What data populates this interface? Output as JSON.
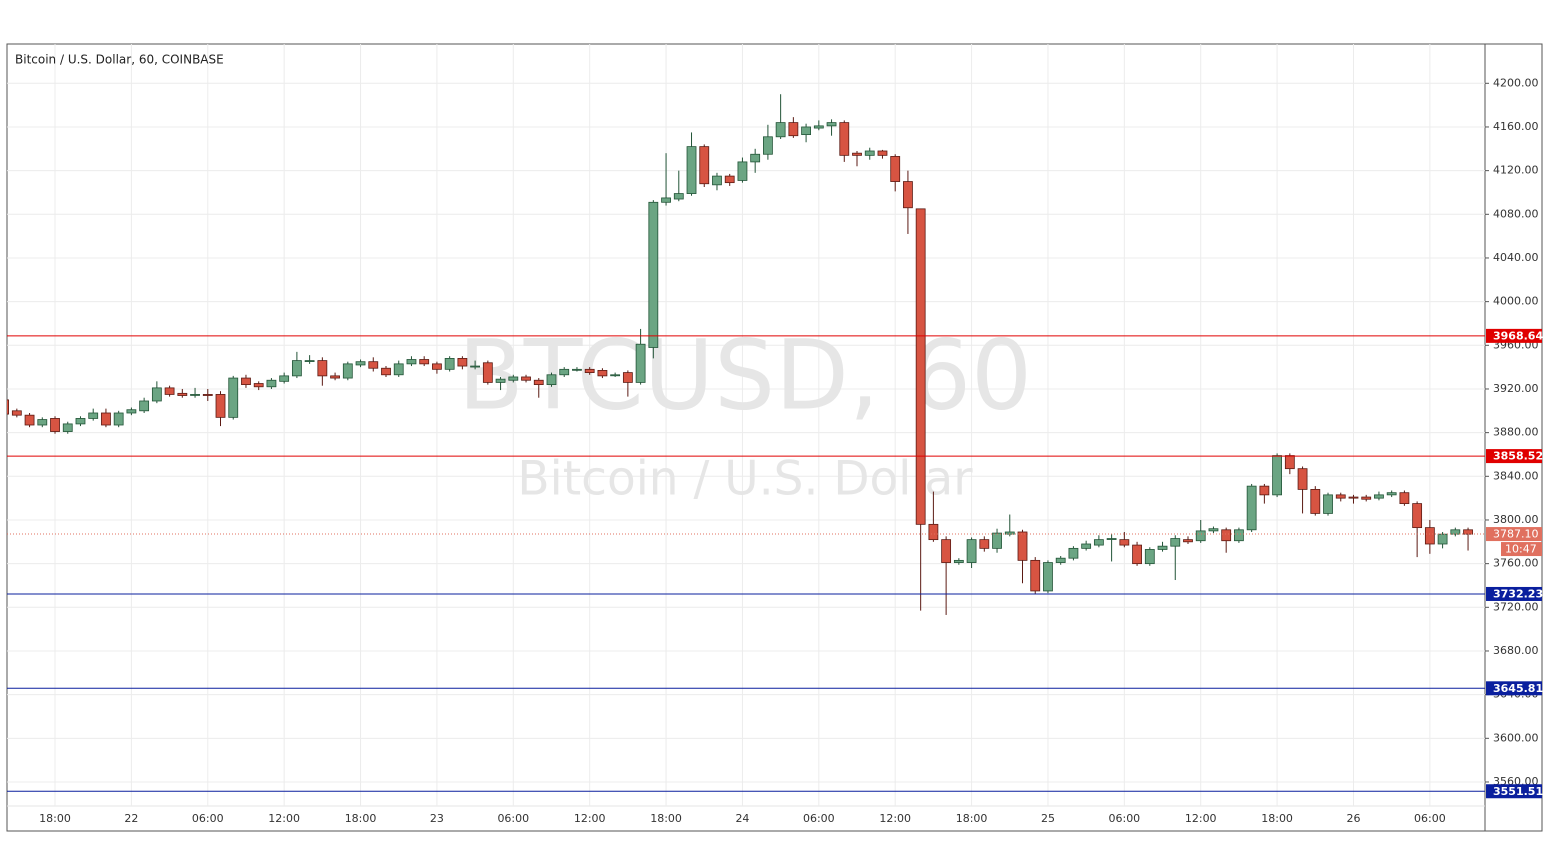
{
  "chart_data": {
    "type": "candlestick",
    "title": "Bitcoin / U.S. Dollar, 60, COINBASE",
    "watermark": "BTCUSD, 60",
    "watermark_subtitle": "Bitcoin / U.S. Dollar",
    "categories": [
      null,
      null,
      null,
      null,
      "18:00",
      null,
      null,
      null,
      null,
      null,
      "22",
      null,
      null,
      null,
      null,
      null,
      "06:00",
      null,
      null,
      null,
      null,
      null,
      "12:00",
      null,
      null,
      null,
      null,
      null,
      "18:00",
      null,
      null,
      null,
      null,
      null,
      "23",
      null,
      null,
      null,
      null,
      null,
      "06:00",
      null,
      null,
      null,
      null,
      null,
      "12:00",
      null,
      null,
      null,
      null,
      null,
      "18:00",
      null,
      null,
      null,
      null,
      null,
      "24",
      null,
      null,
      null,
      null,
      null,
      "06:00",
      null,
      null,
      null,
      null,
      null,
      "12:00",
      null,
      null,
      null,
      null,
      null,
      "18:00",
      null,
      null,
      null,
      null,
      null,
      "25",
      null,
      null,
      null,
      null,
      null,
      "06:00",
      null,
      null,
      null,
      null,
      null,
      "12:00",
      null,
      null,
      null,
      null,
      null,
      "18:00",
      null,
      null,
      null,
      null,
      null,
      "26",
      null,
      null,
      null,
      null,
      null,
      "06:00",
      null,
      null,
      null
    ],
    "open": [
      3910,
      3900,
      3896,
      3887,
      3893,
      3881,
      3888,
      3893,
      3898,
      3887,
      3898,
      3900,
      3909,
      3921,
      3916,
      3915,
      3915,
      3915,
      3894,
      3930,
      3925,
      3922,
      3927,
      3932,
      3946,
      3946,
      3932,
      3930,
      3942,
      3945,
      3939,
      3933,
      3943,
      3947,
      3943,
      3938,
      3948,
      3941,
      3944,
      3926,
      3928,
      3931,
      3928,
      3924,
      3933,
      3938,
      3938,
      3937,
      3933,
      3935,
      3926,
      3958,
      4091,
      4094,
      4099,
      4142,
      4107,
      4115,
      4111,
      4128,
      4135,
      4151,
      4164,
      4153,
      4159,
      4161,
      4164,
      4136,
      4134,
      4138,
      4133,
      4110,
      4085,
      3796,
      3782,
      3761,
      3761,
      3782,
      3774,
      3787,
      3789,
      3763,
      3735,
      3761,
      3765,
      3774,
      3777,
      3783,
      3782,
      3777,
      3760,
      3773,
      3776,
      3782,
      3781,
      3790,
      3791,
      3781,
      3791,
      3831,
      3823,
      3859,
      3847,
      3828,
      3806,
      3823,
      3821,
      3821,
      3820,
      3823,
      3825,
      3815,
      3793,
      3778,
      3787,
      3791
    ],
    "high": [
      3913,
      3902,
      3898,
      3894,
      3895,
      3890,
      3895,
      3902,
      3902,
      3900,
      3903,
      3912,
      3927,
      3923,
      3920,
      3921,
      3920,
      3918,
      3932,
      3933,
      3927,
      3930,
      3935,
      3954,
      3951,
      3949,
      3935,
      3945,
      3947,
      3949,
      3941,
      3946,
      3950,
      3950,
      3945,
      3950,
      3950,
      3946,
      3946,
      3931,
      3933,
      3933,
      3930,
      3935,
      3940,
      3940,
      3940,
      3939,
      3935,
      3937,
      3975,
      4093,
      4136,
      4120,
      4155,
      4144,
      4118,
      4117,
      4132,
      4140,
      4162,
      4190,
      4169,
      4163,
      4166,
      4167,
      4166,
      4138,
      4141,
      4139,
      4135,
      4120,
      4085,
      3826,
      3785,
      3765,
      3784,
      3785,
      3792,
      3805,
      3791,
      3766,
      3763,
      3767,
      3776,
      3781,
      3786,
      3787,
      3789,
      3780,
      3775,
      3780,
      3786,
      3785,
      3800,
      3794,
      3793,
      3793,
      3833,
      3833,
      3861,
      3861,
      3849,
      3831,
      3825,
      3825,
      3823,
      3823,
      3826,
      3827,
      3827,
      3817,
      3800,
      3789,
      3793,
      3793
    ],
    "low": [
      3895,
      3894,
      3885,
      3885,
      3879,
      3879,
      3886,
      3891,
      3885,
      3885,
      3896,
      3898,
      3907,
      3913,
      3912,
      3912,
      3909,
      3886,
      3892,
      3921,
      3919,
      3920,
      3925,
      3930,
      3943,
      3923,
      3928,
      3928,
      3940,
      3936,
      3931,
      3931,
      3941,
      3941,
      3934,
      3936,
      3938,
      3938,
      3924,
      3919,
      3926,
      3926,
      3912,
      3922,
      3931,
      3936,
      3933,
      3930,
      3931,
      3913,
      3924,
      3948,
      4088,
      4092,
      4097,
      4105,
      4102,
      4106,
      4109,
      4118,
      4130,
      4149,
      4150,
      4146,
      4157,
      4152,
      4128,
      4124,
      4130,
      4131,
      4101,
      4062,
      3717,
      3780,
      3713,
      3759,
      3756,
      3771,
      3770,
      3785,
      3742,
      3732,
      3733,
      3759,
      3763,
      3772,
      3775,
      3762,
      3775,
      3758,
      3758,
      3771,
      3745,
      3778,
      3779,
      3788,
      3770,
      3779,
      3789,
      3815,
      3821,
      3842,
      3806,
      3804,
      3804,
      3817,
      3815,
      3817,
      3818,
      3821,
      3813,
      3766,
      3769,
      3774,
      3785,
      3772
    ],
    "close": [
      3897,
      3896,
      3887,
      3892,
      3881,
      3888,
      3893,
      3898,
      3887,
      3898,
      3901,
      3909,
      3921,
      3915,
      3914,
      3915,
      3914,
      3894,
      3930,
      3924,
      3922,
      3928,
      3932,
      3946,
      3946,
      3932,
      3930,
      3943,
      3945,
      3939,
      3933,
      3943,
      3947,
      3943,
      3938,
      3948,
      3941,
      3941,
      3926,
      3929,
      3931,
      3928,
      3924,
      3933,
      3938,
      3938,
      3935,
      3932,
      3933,
      3926,
      3961,
      4091,
      4095,
      4099,
      4142,
      4108,
      4115,
      4109,
      4128,
      4135,
      4151,
      4164,
      4152,
      4160,
      4161,
      4164,
      4134,
      4134,
      4138,
      4134,
      4110,
      4086,
      3796,
      3782,
      3761,
      3763,
      3782,
      3774,
      3788,
      3789,
      3763,
      3735,
      3761,
      3765,
      3774,
      3778,
      3782,
      3783,
      3777,
      3760,
      3773,
      3776,
      3783,
      3780,
      3790,
      3792,
      3781,
      3791,
      3831,
      3823,
      3859,
      3847,
      3828,
      3806,
      3823,
      3820,
      3820,
      3819,
      3823,
      3825,
      3815,
      3793,
      3778,
      3787,
      3791,
      3787
    ],
    "up_color": "#6ba583",
    "down_color": "#d75442",
    "ylim": [
      3538,
      4236
    ],
    "yticks": [
      {
        "value": 3560,
        "label": "3560.00"
      },
      {
        "value": 3600,
        "label": "3600.00"
      },
      {
        "value": 3640,
        "label": "3640.00"
      },
      {
        "value": 3680,
        "label": "3680.00"
      },
      {
        "value": 3720,
        "label": "3720.00"
      },
      {
        "value": 3760,
        "label": "3760.00"
      },
      {
        "value": 3800,
        "label": "3800.00"
      },
      {
        "value": 3840,
        "label": "3840.00"
      },
      {
        "value": 3880,
        "label": "3880.00"
      },
      {
        "value": 3920,
        "label": "3920.00"
      },
      {
        "value": 3960,
        "label": "3960.00"
      },
      {
        "value": 4000,
        "label": "4000.00"
      },
      {
        "value": 4040,
        "label": "4040.00"
      },
      {
        "value": 4080,
        "label": "4080.00"
      },
      {
        "value": 4120,
        "label": "4120.00"
      },
      {
        "value": 4160,
        "label": "4160.00"
      },
      {
        "value": 4200,
        "label": "4200.00"
      }
    ],
    "grid": true,
    "levels": [
      {
        "value": 3968.64,
        "color": "#e00000"
      },
      {
        "value": 3858.52,
        "color": "#e00000"
      },
      {
        "value": 3732.23,
        "color": "#0a1f9e"
      },
      {
        "value": 3645.81,
        "color": "#0a1f9e"
      },
      {
        "value": 3551.51,
        "color": "#0a1f9e"
      }
    ],
    "last_price": {
      "value": 3787.1,
      "label": "3787.10",
      "color": "#e0705f"
    },
    "countdown": "10:47"
  }
}
